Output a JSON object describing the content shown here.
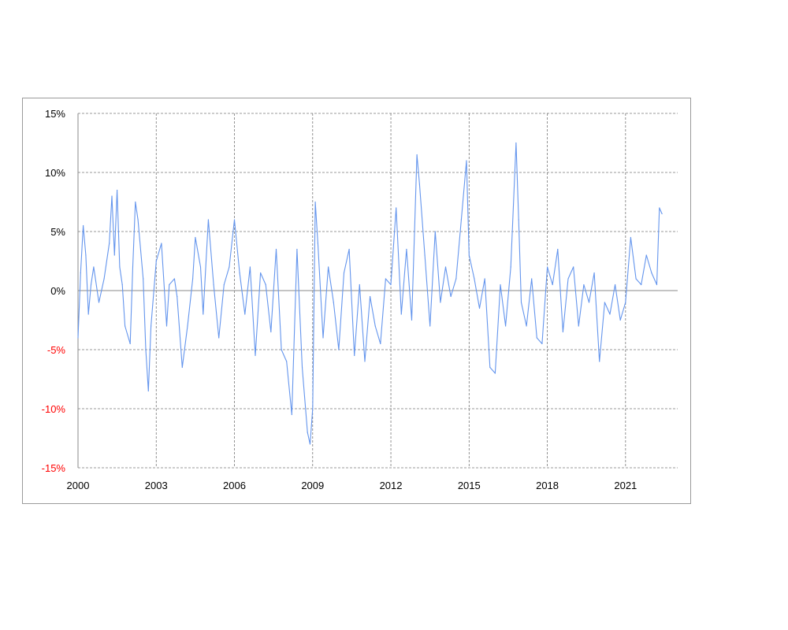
{
  "chart_data": {
    "type": "line",
    "title": "",
    "xlabel": "",
    "ylabel": "",
    "x_ticks": [
      "2000",
      "2003",
      "2006",
      "2009",
      "2012",
      "2015",
      "2018",
      "2021"
    ],
    "y_ticks": [
      "15%",
      "10%",
      "5%",
      "0%",
      "-5%",
      "-10%",
      "-15%"
    ],
    "y_tick_values": [
      15,
      10,
      5,
      0,
      -5,
      -10,
      -15
    ],
    "ylim": [
      -15,
      15
    ],
    "xlim": [
      2000,
      2023
    ],
    "grid": "dashed, both axes",
    "legend": "none",
    "series": [
      {
        "color": "#6495ED",
        "x": [
          2000.0,
          2000.1,
          2000.2,
          2000.3,
          2000.4,
          2000.5,
          2000.6,
          2000.8,
          2001.0,
          2001.2,
          2001.3,
          2001.4,
          2001.5,
          2001.6,
          2001.7,
          2001.8,
          2002.0,
          2002.1,
          2002.2,
          2002.3,
          2002.5,
          2002.6,
          2002.7,
          2002.8,
          2003.0,
          2003.2,
          2003.4,
          2003.5,
          2003.7,
          2003.8,
          2004.0,
          2004.2,
          2004.4,
          2004.5,
          2004.7,
          2004.8,
          2005.0,
          2005.2,
          2005.4,
          2005.6,
          2005.8,
          2006.0,
          2006.2,
          2006.4,
          2006.6,
          2006.8,
          2007.0,
          2007.2,
          2007.4,
          2007.6,
          2007.8,
          2008.0,
          2008.2,
          2008.4,
          2008.6,
          2008.8,
          2008.9,
          2009.0,
          2009.1,
          2009.2,
          2009.4,
          2009.6,
          2009.8,
          2010.0,
          2010.2,
          2010.4,
          2010.6,
          2010.8,
          2011.0,
          2011.2,
          2011.4,
          2011.6,
          2011.8,
          2012.0,
          2012.2,
          2012.4,
          2012.6,
          2012.8,
          2013.0,
          2013.1,
          2013.3,
          2013.5,
          2013.7,
          2013.9,
          2014.1,
          2014.3,
          2014.5,
          2014.7,
          2014.9,
          2015.0,
          2015.2,
          2015.4,
          2015.6,
          2015.8,
          2016.0,
          2016.2,
          2016.4,
          2016.6,
          2016.8,
          2016.9,
          2017.0,
          2017.2,
          2017.4,
          2017.6,
          2017.8,
          2018.0,
          2018.2,
          2018.4,
          2018.6,
          2018.8,
          2019.0,
          2019.2,
          2019.4,
          2019.6,
          2019.8,
          2020.0,
          2020.2,
          2020.4,
          2020.6,
          2020.8,
          2021.0,
          2021.2,
          2021.4,
          2021.6,
          2021.8,
          2022.0,
          2022.2,
          2022.3,
          2022.4
        ],
        "y": [
          -4.0,
          1.5,
          5.5,
          3.0,
          -2.0,
          0.5,
          2.0,
          -1.0,
          1.0,
          4.0,
          8.0,
          3.0,
          8.5,
          2.0,
          0.5,
          -3.0,
          -4.5,
          2.0,
          7.5,
          6.0,
          1.0,
          -5.0,
          -8.5,
          -3.0,
          2.5,
          4.0,
          -3.0,
          0.5,
          1.0,
          -0.5,
          -6.5,
          -3.0,
          1.0,
          4.5,
          2.0,
          -2.0,
          6.0,
          0.5,
          -4.0,
          0.5,
          2.0,
          6.0,
          1.5,
          -2.0,
          2.0,
          -5.5,
          1.5,
          0.5,
          -3.5,
          3.5,
          -5.0,
          -6.0,
          -10.5,
          3.5,
          -6.5,
          -12.0,
          -13.0,
          -10.0,
          7.5,
          4.0,
          -4.0,
          2.0,
          -1.0,
          -5.0,
          1.5,
          3.5,
          -5.5,
          0.5,
          -6.0,
          -0.5,
          -3.0,
          -4.5,
          1.0,
          0.5,
          7.0,
          -2.0,
          3.5,
          -2.5,
          11.5,
          9.0,
          3.0,
          -3.0,
          5.0,
          -1.0,
          2.0,
          -0.5,
          1.0,
          6.0,
          11.0,
          3.0,
          1.0,
          -1.5,
          1.0,
          -6.5,
          -7.0,
          0.5,
          -3.0,
          2.0,
          12.5,
          6.0,
          -1.0,
          -3.0,
          1.0,
          -4.0,
          -4.5,
          2.0,
          0.5,
          3.5,
          -3.5,
          1.0,
          2.0,
          -3.0,
          0.5,
          -1.0,
          1.5,
          -6.0,
          -1.0,
          -2.0,
          0.5,
          -2.5,
          -1.0,
          4.5,
          1.0,
          0.5,
          3.0,
          1.5,
          0.5,
          7.0,
          6.5
        ]
      }
    ]
  }
}
